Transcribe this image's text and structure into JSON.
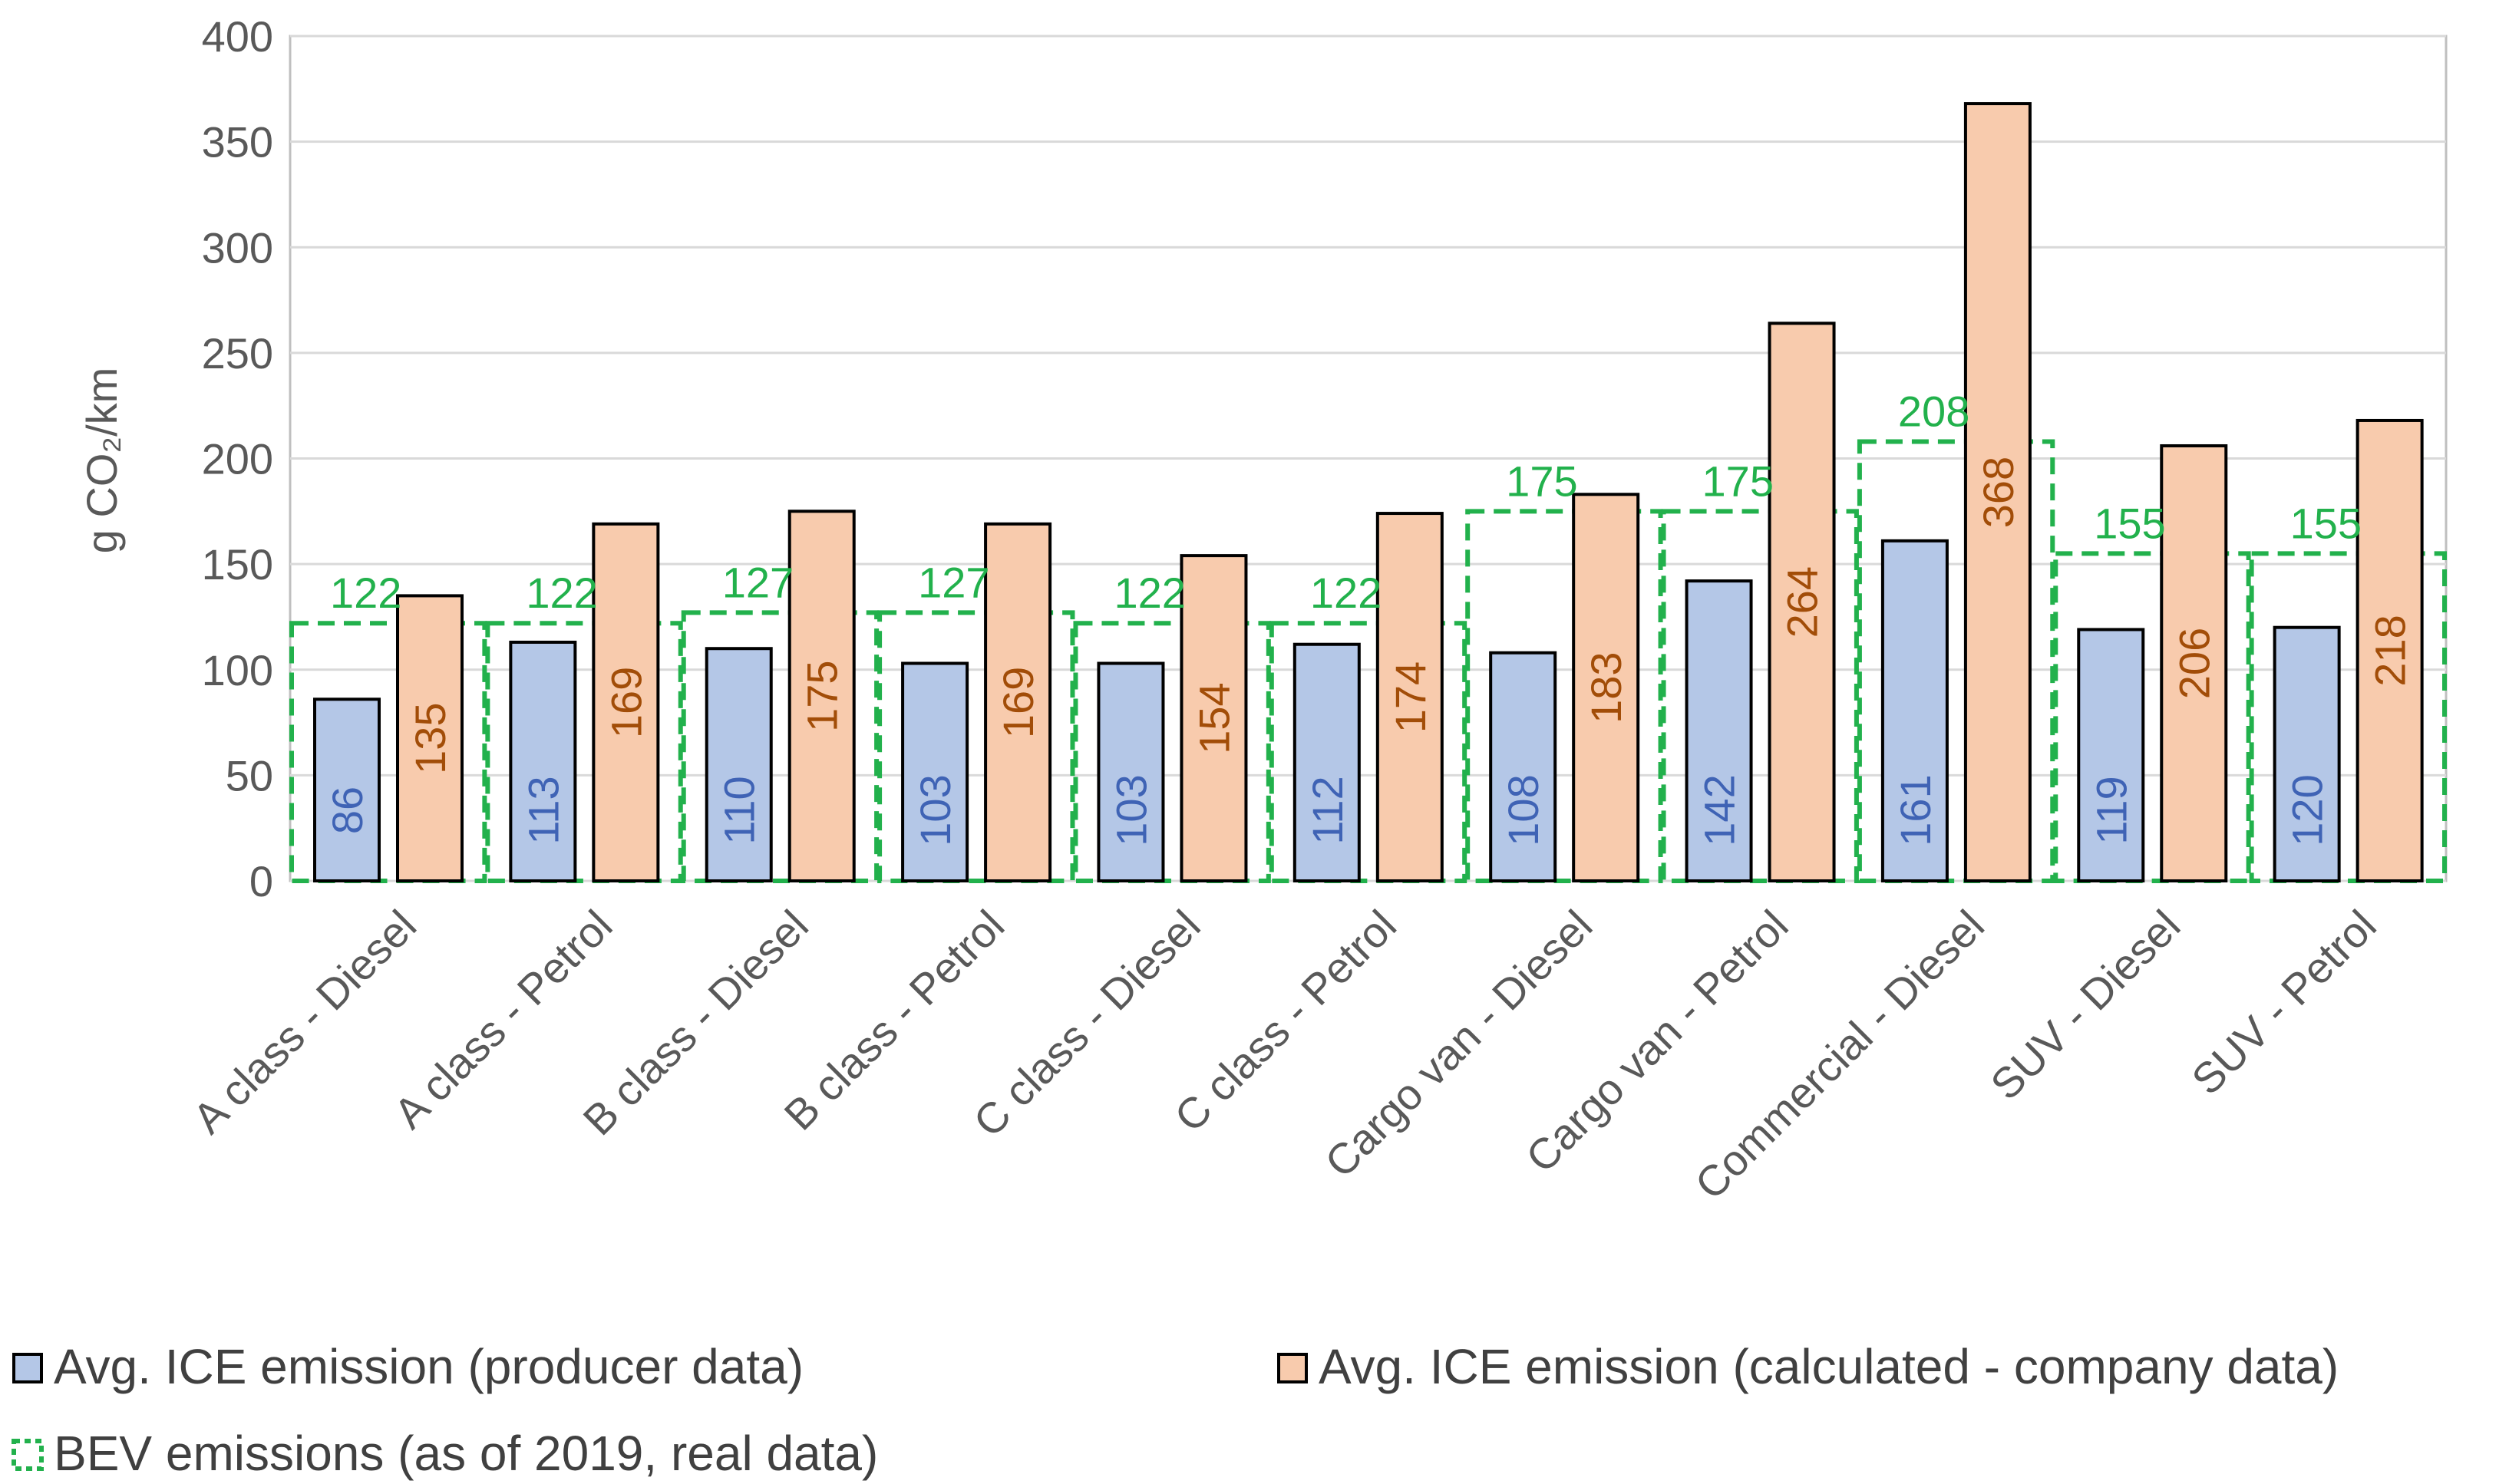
{
  "chart_data": {
    "type": "bar",
    "title": "",
    "xlabel": "",
    "ylabel": "g CO₂/km",
    "ylim": [
      0,
      400
    ],
    "yticks": [
      0,
      50,
      100,
      150,
      200,
      250,
      300,
      350,
      400
    ],
    "grid": true,
    "legend_position": "bottom",
    "categories": [
      "A class - Diesel",
      "A class - Petrol",
      "B class - Diesel",
      "B class - Petrol",
      "C class - Diesel",
      "C class - Petrol",
      "Cargo van - Diesel",
      "Cargo van - Petrol",
      "Commercial - Diesel",
      "SUV - Diesel",
      "SUV - Petrol"
    ],
    "series": [
      {
        "name": "Avg. ICE emission (producer data)",
        "color": "#b4c7e7",
        "values": [
          86,
          113,
          110,
          103,
          103,
          112,
          108,
          142,
          161,
          119,
          120
        ]
      },
      {
        "name": "Avg. ICE emission (calculated - company data)",
        "color": "#f8cbad",
        "values": [
          135,
          169,
          175,
          169,
          154,
          174,
          183,
          264,
          368,
          206,
          218
        ]
      },
      {
        "name": "BEV emissions (as of 2019, real data)",
        "color": "#22b14c",
        "style": "dashed-outline",
        "values": [
          122,
          122,
          127,
          127,
          122,
          122,
          175,
          175,
          208,
          155,
          155
        ]
      }
    ]
  }
}
